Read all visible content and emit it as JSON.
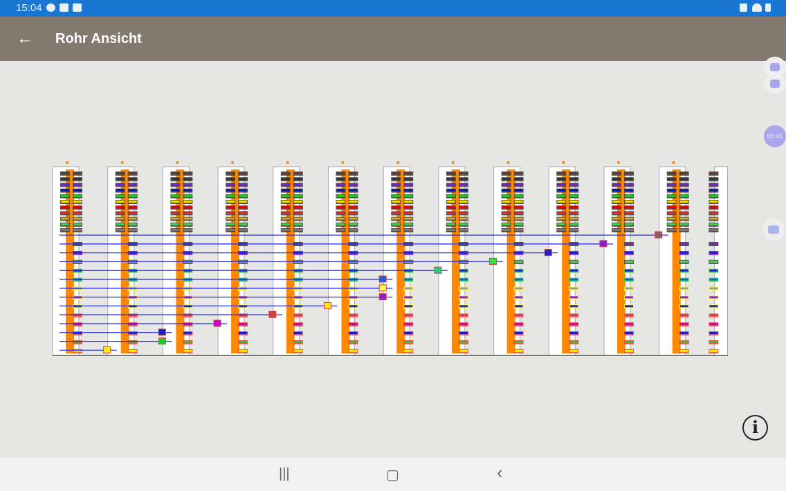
{
  "status_bar": {
    "time": "15:04",
    "icons": [
      "chat-bubble-icon",
      "contact-icon",
      "image-icon",
      "mute-icon",
      "wifi-icon",
      "battery-icon"
    ]
  },
  "app_bar": {
    "title": "Rohr Ansicht",
    "back_icon": "arrow-left-icon"
  },
  "recorder": {
    "timer": "00:41",
    "screenshot_icon": "camera-icon",
    "record_icon": "video-camera-icon"
  },
  "diagram": {
    "pipe_color": "#ff8800",
    "line_color": "#2b2bd8",
    "pipe_columns": 12,
    "top_fiber_colors": [
      "#6b3a2a",
      "#333333",
      "#7b1fd0",
      "#1010a0",
      "#22cc22",
      "#f0e000",
      "#e00000",
      "#d83030",
      "#d8a820",
      "#33dd33",
      "#8a7070"
    ],
    "lower_fiber_colors": [
      [
        "#8a1fd0",
        "#8a1fd0"
      ],
      [
        "#2020c0",
        "#8a1fd0"
      ],
      [
        "#44dd44",
        "#44dd44"
      ],
      [
        "#2020c0",
        "#44dd44"
      ],
      [
        "#1060e0",
        "#44dd44"
      ],
      [
        "#999999",
        "#ffff44"
      ],
      [
        "#8a1fd0",
        "#ffff44"
      ],
      [
        "#2020c0",
        "#ffff44"
      ],
      [
        "#cc4444",
        "#ee6666"
      ],
      [
        "#cc00cc",
        "#ee4444"
      ],
      [
        "#2020c0",
        "#ee4444"
      ],
      [
        "#22cc22",
        "#ee4444"
      ],
      [
        "#ffee00",
        "#ee4444"
      ]
    ],
    "connections": [
      [
        "#8a6060",
        11
      ],
      [
        "#8a1fd0",
        10
      ],
      [
        "#2020c0",
        9
      ],
      [
        "#44dd44",
        8
      ],
      [
        "#22cc88",
        7
      ],
      [
        "#2060e0",
        6
      ],
      [
        "#ffff44",
        6
      ],
      [
        "#8a1fd0",
        6
      ],
      [
        "#ffee00",
        5
      ],
      [
        "#cc4444",
        4
      ],
      [
        "#cc00cc",
        3
      ],
      [
        "#2020c0",
        2
      ],
      [
        "#22cc22",
        2
      ],
      [
        "#ffee00",
        1
      ]
    ]
  },
  "info_button": "i",
  "nav": {
    "recents": "|||",
    "home": "▢",
    "back": "‹"
  }
}
